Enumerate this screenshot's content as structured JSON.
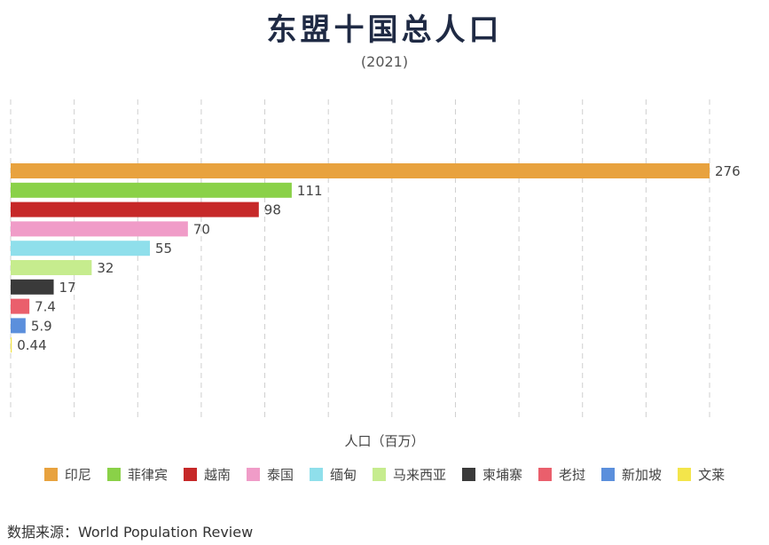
{
  "title": "东盟十国总人口",
  "subtitle": "(2021)",
  "source": "数据来源：World Population Review",
  "chart_data": {
    "type": "bar",
    "orientation": "horizontal",
    "title": "东盟十国总人口",
    "subtitle": "(2021)",
    "xlabel": "人口（百万）",
    "ylabel": "",
    "xlim": [
      0,
      276
    ],
    "grid": "vertical dashed",
    "legend_position": "bottom",
    "categories": [
      "印尼",
      "菲律宾",
      "越南",
      "泰国",
      "缅甸",
      "马来西亚",
      "柬埔寨",
      "老挝",
      "新加坡",
      "文莱"
    ],
    "values": [
      276,
      111,
      98,
      70,
      55,
      32,
      17,
      7.4,
      5.9,
      0.44
    ],
    "labels": [
      "276",
      "111",
      "98",
      "70",
      "55",
      "32",
      "17",
      "7.4",
      "5.9",
      "0.44"
    ],
    "colors": [
      "#e8a23e",
      "#8ad148",
      "#c62828",
      "#f09cc8",
      "#8fdfeb",
      "#c6ec8e",
      "#3a3a3a",
      "#ea5f6c",
      "#5b8fdc",
      "#f3e54b"
    ]
  }
}
